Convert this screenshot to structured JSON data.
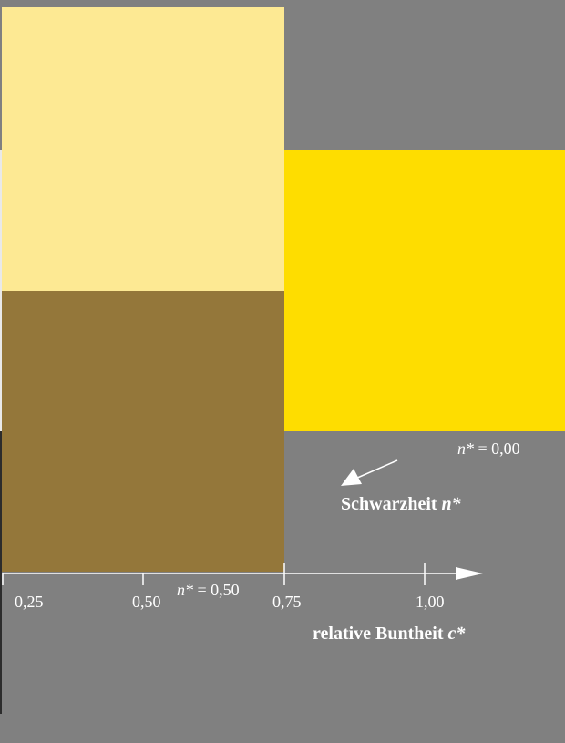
{
  "colors": {
    "background": "#808080",
    "swatch_light_yellow": "#fde993",
    "swatch_dark_yellow": "#94773a",
    "swatch_pure_yellow": "#fedd00",
    "annotation": "#ffffff"
  },
  "swatches": [
    {
      "name": "light-yellow",
      "color": "#fde993"
    },
    {
      "name": "dark-yellow",
      "color": "#94773a"
    },
    {
      "name": "pure-yellow",
      "color": "#fedd00"
    }
  ],
  "x_axis": {
    "tick_labels": [
      "0,25",
      "0,50",
      "0,75",
      "1,00"
    ],
    "title_text": "relative Buntheit ",
    "title_var": "c*"
  },
  "annotations": {
    "n_half_var": "n*",
    "n_half_value": " = 0,50",
    "n_zero_var": "n*",
    "n_zero_value": " = 0,00",
    "blackness_text": "Schwarzheit ",
    "blackness_var": "n*"
  }
}
